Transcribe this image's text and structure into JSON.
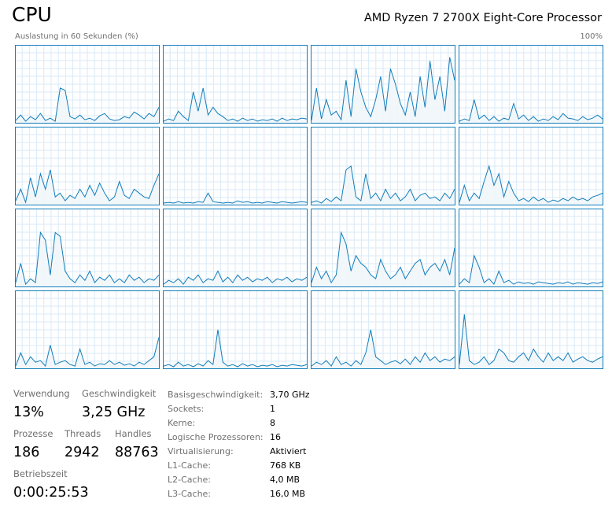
{
  "header": {
    "title": "CPU",
    "processor": "AMD Ryzen 7 2700X Eight-Core Processor",
    "axis_label": "Auslastung in 60 Sekunden (%)",
    "axis_max_label": "100%"
  },
  "graphs": {
    "ylim": [
      0,
      100
    ],
    "series": [
      {
        "values": [
          3,
          10,
          2,
          8,
          4,
          12,
          3,
          6,
          2,
          45,
          42,
          8,
          5,
          10,
          4,
          6,
          3,
          9,
          12,
          5,
          3,
          4,
          8,
          6,
          14,
          10,
          5,
          12,
          8,
          20
        ]
      },
      {
        "values": [
          2,
          5,
          3,
          15,
          8,
          3,
          40,
          15,
          45,
          10,
          20,
          12,
          8,
          3,
          5,
          2,
          6,
          3,
          5,
          2,
          4,
          3,
          5,
          2,
          6,
          3,
          5,
          4,
          6,
          5
        ]
      },
      {
        "values": [
          3,
          45,
          5,
          30,
          10,
          15,
          4,
          55,
          8,
          70,
          40,
          20,
          8,
          30,
          60,
          15,
          70,
          50,
          25,
          10,
          40,
          8,
          60,
          20,
          80,
          30,
          60,
          15,
          85,
          55
        ]
      },
      {
        "values": [
          2,
          5,
          3,
          30,
          5,
          10,
          3,
          8,
          2,
          6,
          4,
          25,
          5,
          10,
          3,
          8,
          2,
          5,
          3,
          8,
          4,
          12,
          6,
          5,
          3,
          8,
          4,
          6,
          10,
          5
        ]
      },
      {
        "values": [
          5,
          20,
          3,
          35,
          10,
          40,
          20,
          45,
          10,
          15,
          5,
          12,
          8,
          20,
          10,
          25,
          12,
          28,
          15,
          5,
          10,
          30,
          12,
          8,
          20,
          15,
          10,
          8,
          25,
          40
        ]
      },
      {
        "values": [
          2,
          3,
          2,
          4,
          2,
          3,
          2,
          4,
          3,
          15,
          4,
          3,
          2,
          3,
          2,
          5,
          3,
          4,
          2,
          3,
          2,
          4,
          3,
          2,
          4,
          3,
          2,
          3,
          4,
          3
        ]
      },
      {
        "values": [
          3,
          5,
          2,
          8,
          4,
          10,
          5,
          45,
          50,
          10,
          5,
          40,
          8,
          15,
          5,
          20,
          8,
          15,
          5,
          10,
          20,
          5,
          12,
          15,
          8,
          10,
          5,
          15,
          8,
          20
        ]
      },
      {
        "values": [
          3,
          25,
          5,
          15,
          8,
          30,
          50,
          25,
          40,
          10,
          30,
          15,
          5,
          8,
          4,
          10,
          5,
          8,
          3,
          6,
          4,
          8,
          5,
          10,
          6,
          8,
          5,
          10,
          12,
          15
        ]
      },
      {
        "values": [
          5,
          30,
          3,
          10,
          5,
          70,
          60,
          15,
          70,
          65,
          20,
          10,
          5,
          15,
          8,
          20,
          5,
          12,
          8,
          15,
          5,
          10,
          5,
          15,
          8,
          12,
          5,
          10,
          8,
          15
        ]
      },
      {
        "values": [
          3,
          8,
          5,
          10,
          3,
          12,
          8,
          15,
          5,
          10,
          8,
          20,
          6,
          12,
          5,
          15,
          8,
          12,
          6,
          10,
          8,
          12,
          5,
          10,
          8,
          12,
          6,
          10,
          8,
          12
        ]
      },
      {
        "values": [
          5,
          25,
          10,
          20,
          5,
          15,
          70,
          55,
          20,
          40,
          30,
          25,
          15,
          10,
          35,
          20,
          10,
          15,
          25,
          10,
          20,
          30,
          35,
          15,
          25,
          30,
          20,
          35,
          15,
          50
        ]
      },
      {
        "values": [
          3,
          10,
          5,
          40,
          25,
          5,
          10,
          3,
          20,
          5,
          8,
          3,
          6,
          4,
          5,
          3,
          6,
          5,
          4,
          3,
          5,
          4,
          6,
          3,
          5,
          4,
          3,
          5,
          4,
          6
        ]
      },
      {
        "values": [
          3,
          20,
          5,
          15,
          8,
          10,
          3,
          30,
          5,
          8,
          10,
          5,
          3,
          25,
          5,
          8,
          3,
          6,
          5,
          10,
          5,
          8,
          4,
          6,
          3,
          8,
          5,
          10,
          15,
          40
        ]
      },
      {
        "values": [
          3,
          5,
          2,
          8,
          3,
          5,
          2,
          6,
          3,
          10,
          5,
          50,
          8,
          3,
          5,
          2,
          6,
          3,
          5,
          2,
          4,
          3,
          5,
          2,
          4,
          3,
          5,
          4,
          3,
          5
        ]
      },
      {
        "values": [
          3,
          8,
          5,
          10,
          3,
          15,
          5,
          8,
          3,
          10,
          5,
          20,
          50,
          15,
          10,
          5,
          8,
          10,
          6,
          12,
          5,
          15,
          8,
          20,
          10,
          15,
          8,
          12,
          10,
          15
        ]
      },
      {
        "values": [
          5,
          70,
          10,
          5,
          8,
          15,
          5,
          10,
          25,
          20,
          10,
          8,
          15,
          20,
          10,
          25,
          15,
          8,
          20,
          10,
          15,
          10,
          20,
          8,
          12,
          15,
          10,
          8,
          12,
          15
        ]
      }
    ]
  },
  "stats": [
    {
      "label": "Verwendung",
      "value": "13%"
    },
    {
      "label": "Geschwindigkeit",
      "value": "3,25 GHz"
    },
    {
      "label": "Prozesse",
      "value": "186"
    },
    {
      "label": "Threads",
      "value": "2942"
    },
    {
      "label": "Handles",
      "value": "88763"
    },
    {
      "label": "Betriebszeit",
      "value": "0:00:25:53"
    }
  ],
  "details": [
    {
      "label": "Basisgeschwindigkeit:",
      "value": "3,70 GHz"
    },
    {
      "label": "Sockets:",
      "value": "1"
    },
    {
      "label": "Kerne:",
      "value": "8"
    },
    {
      "label": "Logische Prozessoren:",
      "value": "16"
    },
    {
      "label": "Virtualisierung:",
      "value": "Aktiviert"
    },
    {
      "label": "L1-Cache:",
      "value": "768 KB"
    },
    {
      "label": "L2-Cache:",
      "value": "4,0 MB"
    },
    {
      "label": "L3-Cache:",
      "value": "16,0 MB"
    }
  ]
}
